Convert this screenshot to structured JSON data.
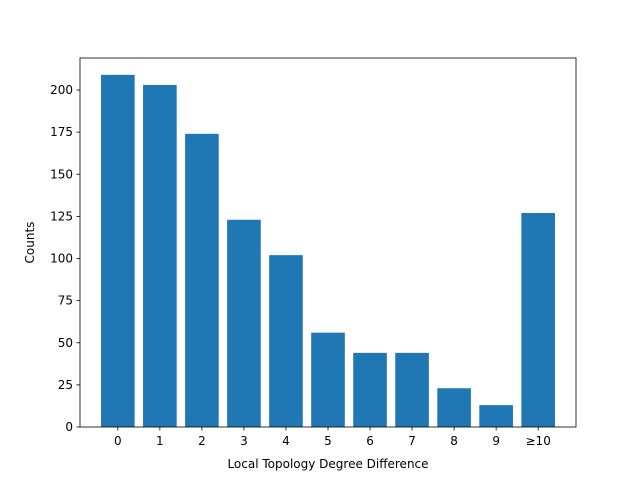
{
  "chart_data": {
    "type": "bar",
    "categories": [
      "0",
      "1",
      "2",
      "3",
      "4",
      "5",
      "6",
      "7",
      "8",
      "9",
      "≥10"
    ],
    "values": [
      209,
      203,
      174,
      123,
      102,
      56,
      44,
      44,
      23,
      13,
      127
    ],
    "xlabel": "Local Topology Degree Difference",
    "ylabel": "Counts",
    "ylim": [
      0,
      219
    ],
    "yticks": [
      0,
      25,
      50,
      75,
      100,
      125,
      150,
      175,
      200
    ],
    "grid": false,
    "bar_color": "#1f77b4"
  }
}
